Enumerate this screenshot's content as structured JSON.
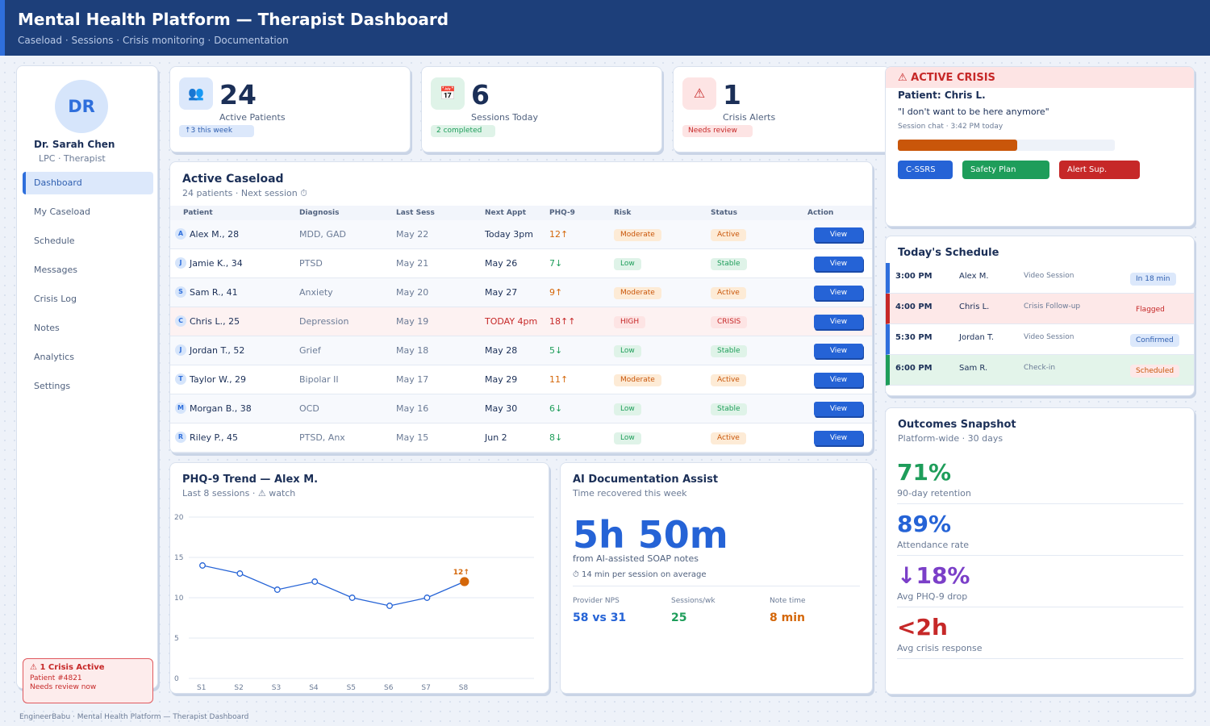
{
  "header": {
    "title": "Mental Health Platform — Therapist Dashboard",
    "subtitle": "Caseload · Sessions · Crisis monitoring · Documentation"
  },
  "sidebar": {
    "avatar_initials": "DR",
    "name": "Dr. Sarah Chen",
    "role": "LPC · Therapist",
    "items": [
      {
        "label": "Dashboard",
        "active": true
      },
      {
        "label": "My Caseload"
      },
      {
        "label": "Schedule"
      },
      {
        "label": "Messages"
      },
      {
        "label": "Crisis Log"
      },
      {
        "label": "Notes"
      },
      {
        "label": "Analytics"
      },
      {
        "label": "Settings"
      }
    ],
    "crisis": {
      "title": "⚠ 1 Crisis Active",
      "patient": "Patient #4821",
      "note": "Needs review now"
    }
  },
  "stats": [
    {
      "icon": "👥",
      "value": "24",
      "label": "Active Patients",
      "pill": "↑3 this week"
    },
    {
      "icon": "📅",
      "value": "6",
      "label": "Sessions Today",
      "pill": "2 completed"
    },
    {
      "icon": "⚠",
      "value": "1",
      "label": "Crisis Alerts",
      "pill": "Needs review"
    }
  ],
  "caseload": {
    "title": "Active Caseload",
    "subtitle": "24 patients · Next session ⏱",
    "columns": [
      "Patient",
      "Diagnosis",
      "Last Sess",
      "Next Appt",
      "PHQ-9",
      "Risk",
      "Status",
      "Action"
    ],
    "action_label": "View",
    "rows": [
      {
        "initial": "A",
        "patient": "Alex M., 28",
        "diagnosis": "MDD, GAD",
        "last": "May 22",
        "next": "Today 3pm",
        "phq": "12↑",
        "risk": "Moderate",
        "status": "Active"
      },
      {
        "initial": "J",
        "patient": "Jamie K., 34",
        "diagnosis": "PTSD",
        "last": "May 21",
        "next": "May 26",
        "phq": "7↓",
        "risk": "Low",
        "status": "Stable"
      },
      {
        "initial": "S",
        "patient": "Sam R., 41",
        "diagnosis": "Anxiety",
        "last": "May 20",
        "next": "May 27",
        "phq": "9↑",
        "risk": "Moderate",
        "status": "Active"
      },
      {
        "initial": "C",
        "patient": "Chris L., 25",
        "diagnosis": "Depression",
        "last": "May 19",
        "next": "TODAY 4pm",
        "phq": "18↑↑",
        "risk": "HIGH",
        "status": "CRISIS"
      },
      {
        "initial": "J",
        "patient": "Jordan T., 52",
        "diagnosis": "Grief",
        "last": "May 18",
        "next": "May 28",
        "phq": "5↓",
        "risk": "Low",
        "status": "Stable"
      },
      {
        "initial": "T",
        "patient": "Taylor W., 29",
        "diagnosis": "Bipolar II",
        "last": "May 17",
        "next": "May 29",
        "phq": "11↑",
        "risk": "Moderate",
        "status": "Active"
      },
      {
        "initial": "M",
        "patient": "Morgan B., 38",
        "diagnosis": "OCD",
        "last": "May 16",
        "next": "May 30",
        "phq": "6↓",
        "risk": "Low",
        "status": "Stable"
      },
      {
        "initial": "R",
        "patient": "Riley P., 45",
        "diagnosis": "PTSD, Anx",
        "last": "May 15",
        "next": "Jun 2",
        "phq": "8↓",
        "risk": "Low",
        "status": "Active"
      }
    ]
  },
  "phq_chart": {
    "title": "PHQ-9 Trend — Alex M.",
    "subtitle": "Last 8 sessions · ⚠ watch",
    "last_label": "12↑"
  },
  "chart_data": {
    "type": "line",
    "title": "PHQ-9 Trend — Alex M.",
    "categories": [
      "S1",
      "S2",
      "S3",
      "S4",
      "S5",
      "S6",
      "S7",
      "S8"
    ],
    "values": [
      14,
      13,
      11,
      12,
      10,
      9,
      10,
      12
    ],
    "ylim": [
      0,
      20
    ],
    "yticks": [
      0,
      5,
      10,
      15,
      20
    ],
    "grid": true,
    "colors": {
      "line": "#2563d6",
      "highlight": "#d4670a"
    }
  },
  "doc_assist": {
    "title": "AI Documentation Assist",
    "subtitle": "Time recovered this week",
    "value": "5h 50m",
    "caption": "from AI-assisted SOAP notes",
    "note": "⏱ 14 min per session on average",
    "kpis": [
      {
        "label": "Provider NPS",
        "value": "58 vs 31"
      },
      {
        "label": "Sessions/wk",
        "value": "25"
      },
      {
        "label": "Note time",
        "value": "8 min"
      }
    ]
  },
  "crisis_panel": {
    "header": "⚠ ACTIVE CRISIS",
    "patient": "Patient: Chris L.",
    "quote": "\"I don't want to be here anymore\"",
    "meta": "Session chat · 3:42 PM today",
    "risk_level": 0.55,
    "buttons": [
      "C-SSRS",
      "Safety Plan",
      "Alert Sup."
    ]
  },
  "schedule": {
    "title": "Today's Schedule",
    "rows": [
      {
        "time": "3:00 PM",
        "name": "Alex M.",
        "type": "Video Session",
        "status": "In 18 min"
      },
      {
        "time": "4:00 PM",
        "name": "Chris L.",
        "type": "Crisis Follow-up",
        "status": "Flagged"
      },
      {
        "time": "5:30 PM",
        "name": "Jordan T.",
        "type": "Video Session",
        "status": "Confirmed"
      },
      {
        "time": "6:00 PM",
        "name": "Sam R.",
        "type": "Check-in",
        "status": "Scheduled"
      }
    ]
  },
  "outcomes": {
    "title": "Outcomes Snapshot",
    "subtitle": "Platform-wide · 30 days",
    "metrics": [
      {
        "value": "71%",
        "label": "90-day retention",
        "color": "#1e9d5a"
      },
      {
        "value": "89%",
        "label": "Attendance rate",
        "color": "#2563d6"
      },
      {
        "value": "↓18%",
        "label": "Avg PHQ-9 drop",
        "color": "#7b3fc8"
      },
      {
        "value": "<2h",
        "label": "Avg crisis response",
        "color": "#c62828"
      }
    ]
  },
  "footer": "EngineerBabu · Mental Health Platform — Therapist Dashboard"
}
